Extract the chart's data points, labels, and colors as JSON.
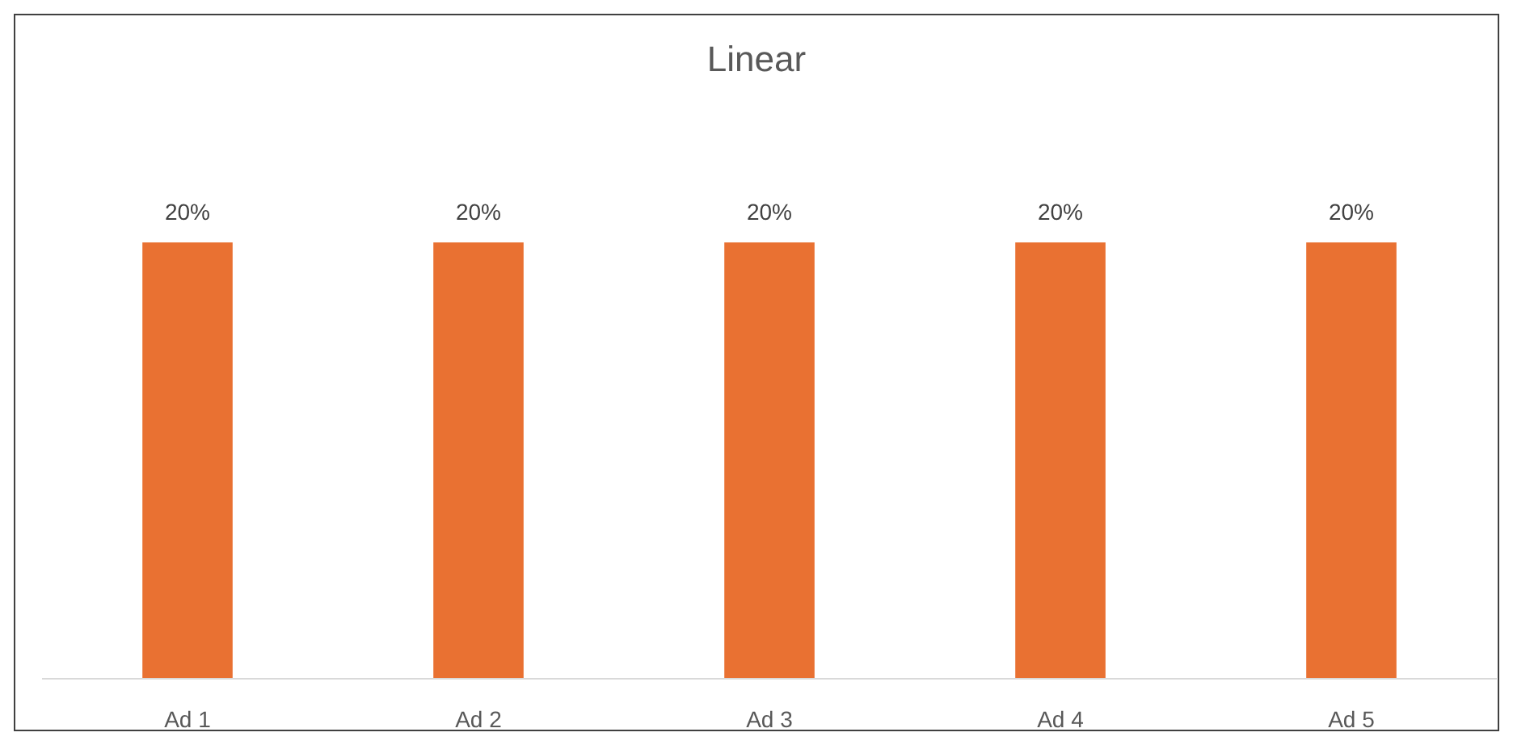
{
  "chart_data": {
    "type": "bar",
    "title": "Linear",
    "categories": [
      "Ad 1",
      "Ad 2",
      "Ad 3",
      "Ad 4",
      "Ad 5"
    ],
    "values": [
      20,
      20,
      20,
      20,
      20
    ],
    "color": "#e97132",
    "data_labels": true,
    "value_labels": [
      "20%",
      "20%",
      "20%",
      "20%",
      "20%"
    ]
  }
}
